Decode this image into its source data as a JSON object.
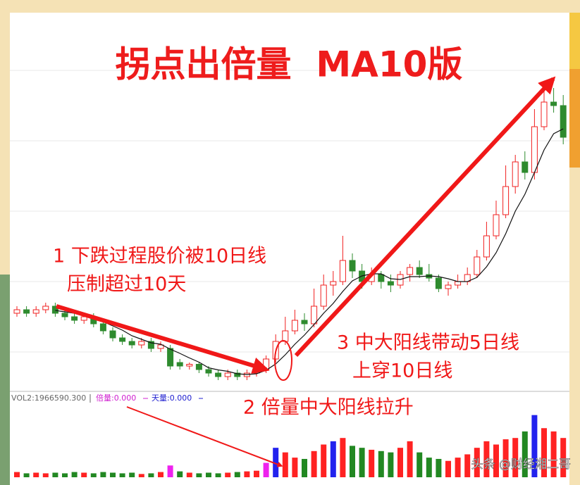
{
  "chart_data": {
    "type": "candlestick",
    "title": "拐点出倍量  MA10版",
    "annotations": [
      "1 下跌过程股价被10日线",
      "压制超过10天",
      "2 倍量中大阳线拉升",
      "3 中大阳线带动5日线",
      "上穿10日线"
    ],
    "watermark": "头条 @财经湘二哥",
    "volume_legend": [
      "VOL2:1966590.300",
      "倍量:0.000",
      "天量:0.000"
    ],
    "up_color": "#f02020",
    "down_color": "#2e8b2e",
    "ma_color": "#111111",
    "ylim": [
      0,
      107
    ],
    "open": [
      22,
      23,
      22,
      23,
      24,
      22,
      21,
      20,
      21,
      19,
      17,
      15,
      14,
      13,
      14,
      12,
      12,
      8,
      7,
      7.5,
      6,
      5,
      4,
      5,
      4,
      5,
      6,
      9,
      14,
      17,
      20,
      19,
      24,
      30,
      31,
      37,
      34,
      31,
      33,
      31,
      30,
      33,
      35,
      33,
      32,
      29,
      30,
      31,
      33,
      38,
      44,
      50,
      58,
      65,
      62,
      75,
      82,
      81
    ],
    "high": [
      24,
      24,
      24,
      25,
      25,
      23,
      22,
      22,
      22,
      20,
      18,
      16,
      15,
      15,
      15,
      14,
      13,
      9,
      8,
      8,
      7,
      6,
      6,
      6,
      6,
      7,
      10,
      16,
      21,
      23,
      22,
      29,
      33,
      34,
      44,
      39,
      36,
      35,
      34,
      33,
      34,
      36,
      37,
      36,
      33,
      31,
      33,
      35,
      40,
      48,
      54,
      64,
      67,
      68,
      80,
      87,
      86,
      84
    ],
    "low": [
      21,
      21,
      21,
      22,
      21,
      20,
      19,
      19,
      18,
      16,
      14,
      13,
      12,
      12,
      11,
      11,
      6,
      6,
      6,
      5,
      4,
      3,
      3,
      3,
      3,
      4,
      5,
      8,
      13,
      16,
      17,
      18,
      23,
      27,
      30,
      32,
      29,
      30,
      29,
      28,
      29,
      31,
      32,
      31,
      28,
      27,
      29,
      30,
      32,
      37,
      43,
      49,
      56,
      60,
      60,
      74,
      79,
      70
    ],
    "close": [
      23,
      22,
      23,
      24,
      22,
      21,
      20,
      21,
      19,
      17,
      15,
      14,
      13,
      14,
      12,
      13,
      7,
      7,
      7.5,
      6,
      5,
      4,
      5,
      4,
      5,
      6,
      9,
      14,
      17,
      20,
      19,
      24,
      30,
      31,
      37,
      34,
      31,
      33,
      31,
      30,
      33,
      35,
      33,
      32,
      29,
      30,
      31,
      33,
      38,
      44,
      50,
      58,
      65,
      62,
      75,
      82,
      81,
      72
    ],
    "ma5": [
      null,
      null,
      null,
      null,
      22.8,
      22.4,
      22,
      21.6,
      20.6,
      19.6,
      18.4,
      17.2,
      15.6,
      14.6,
      13.6,
      13.2,
      11.8,
      10.6,
      9.3,
      8.1,
      6.5,
      5.9,
      5.5,
      4.8,
      4.6,
      4.8,
      5.8,
      7.6,
      10.2,
      13.2,
      15.8,
      18.8,
      22,
      24.8,
      28.2,
      31.2,
      32.6,
      33.2,
      33.2,
      31.8,
      31.6,
      32.4,
      32.4,
      32.6,
      32.4,
      31.8,
      31,
      31,
      32.2,
      35.2,
      39.2,
      44.6,
      51,
      55.8,
      62,
      68.4,
      73,
      74.4
    ],
    "volume_ylim": [
      0,
      100
    ],
    "volume": [
      8,
      6,
      7,
      6,
      7,
      6,
      8,
      7,
      6,
      8,
      7,
      6,
      7,
      5,
      6,
      8,
      18,
      9,
      7,
      6,
      7,
      6,
      7,
      8,
      9,
      10,
      22,
      45,
      38,
      30,
      28,
      40,
      50,
      55,
      60,
      48,
      45,
      42,
      40,
      38,
      45,
      55,
      38,
      30,
      28,
      25,
      30,
      35,
      45,
      55,
      50,
      58,
      60,
      70,
      95,
      75,
      70,
      60
    ],
    "volume_colors": [
      "#f22",
      "#282",
      "#f22",
      "#f22",
      "#282",
      "#282",
      "#282",
      "#f22",
      "#282",
      "#282",
      "#282",
      "#282",
      "#282",
      "#f22",
      "#282",
      "#f22",
      "#e2e",
      "#282",
      "#f22",
      "#282",
      "#282",
      "#282",
      "#f22",
      "#282",
      "#f22",
      "#f22",
      "#e2e",
      "#22e",
      "#f22",
      "#f22",
      "#282",
      "#f22",
      "#f22",
      "#22e",
      "#f22",
      "#282",
      "#282",
      "#f22",
      "#282",
      "#282",
      "#f22",
      "#f22",
      "#282",
      "#282",
      "#282",
      "#f22",
      "#f22",
      "#f22",
      "#f22",
      "#f22",
      "#f22",
      "#f22",
      "#f22",
      "#282",
      "#22e",
      "#f22",
      "#f22",
      "#f22"
    ]
  }
}
